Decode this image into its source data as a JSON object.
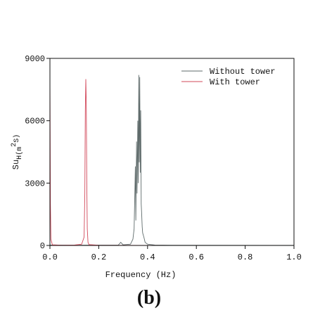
{
  "chart_data": {
    "type": "line",
    "y_label_parts": [
      "Su",
      "H(m",
      "2",
      "S)"
    ],
    "x_label": "Frequency (Hz)",
    "caption": "(b)",
    "xlim": [
      0,
      1
    ],
    "ylim": [
      0,
      9000
    ],
    "xticks": [
      {
        "value": 0,
        "label": "0.0"
      },
      0.2,
      0.4,
      0.6,
      0.8,
      {
        "value": 1,
        "label": "1.0"
      }
    ],
    "yticks": [
      0,
      3000,
      6000,
      9000
    ],
    "legend": "upper right",
    "series": [
      {
        "name": "Without tower",
        "color": "#5f6b6b",
        "x": [
          0,
          0.1,
          0.28,
          0.285,
          0.29,
          0.3,
          0.33,
          0.34,
          0.345,
          0.35,
          0.352,
          0.355,
          0.357,
          0.36,
          0.362,
          0.364,
          0.366,
          0.368,
          0.37,
          0.372,
          0.374,
          0.376,
          0.378,
          0.38,
          0.385,
          0.39,
          0.4,
          0.43,
          0.5,
          1.0
        ],
        "values": [
          20,
          10,
          20,
          80,
          150,
          30,
          60,
          300,
          800,
          3800,
          1200,
          5000,
          2500,
          6000,
          3000,
          8200,
          4000,
          8100,
          3500,
          6500,
          2000,
          1500,
          900,
          600,
          400,
          150,
          60,
          20,
          10,
          5
        ]
      },
      {
        "name": "With tower",
        "color": "#d2485a",
        "x": [
          0,
          0.002,
          0.004,
          0.01,
          0.05,
          0.1,
          0.13,
          0.14,
          0.143,
          0.145,
          0.147,
          0.149,
          0.151,
          0.153,
          0.156,
          0.16,
          0.2,
          0.3,
          0.5,
          1.0
        ],
        "values": [
          8200,
          2000,
          300,
          30,
          10,
          20,
          60,
          400,
          2500,
          6500,
          8000,
          6800,
          3000,
          800,
          150,
          40,
          10,
          5,
          2,
          0
        ]
      }
    ]
  }
}
